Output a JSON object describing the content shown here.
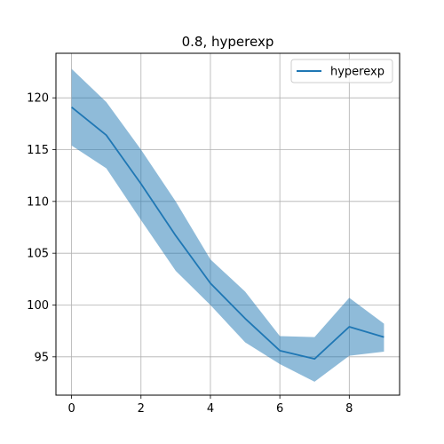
{
  "chart_data": {
    "type": "line",
    "title": "0.8, hyperexp",
    "xlabel": "",
    "ylabel": "",
    "x": [
      0,
      1,
      2,
      3,
      4,
      5,
      6,
      7,
      8,
      9
    ],
    "series": [
      {
        "name": "hyperexp",
        "values": [
          119.1,
          116.4,
          111.7,
          106.7,
          102.1,
          98.7,
          95.6,
          94.8,
          97.9,
          96.9
        ],
        "lower": [
          115.4,
          113.2,
          108.2,
          103.3,
          100.0,
          96.4,
          94.3,
          92.6,
          95.1,
          95.5
        ],
        "upper": [
          122.8,
          119.6,
          115.0,
          110.0,
          104.4,
          101.3,
          97.0,
          96.9,
          100.7,
          98.2
        ],
        "color": "#1f77b4",
        "band_color": "#1f77b4"
      }
    ],
    "xlim": [
      -0.45,
      9.45
    ],
    "ylim": [
      91.3,
      124.3
    ],
    "xticks": [
      0,
      2,
      4,
      6,
      8
    ],
    "yticks": [
      95,
      100,
      105,
      110,
      115,
      120
    ],
    "grid": true,
    "legend_position": "top-right"
  }
}
